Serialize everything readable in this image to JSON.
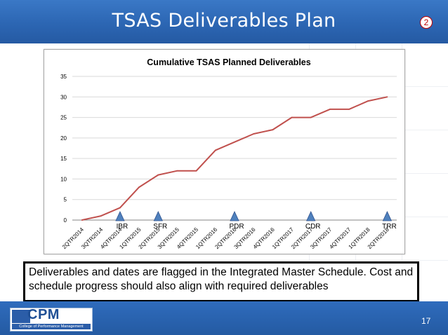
{
  "slide": {
    "title": "TSAS Deliverables Plan",
    "badge": "2",
    "page_number": "17",
    "callout": "Deliverables and dates are flagged in the Integrated Master Schedule.  Cost and schedule progress should also align with required deliverables"
  },
  "logo": {
    "name": "CPM",
    "subtitle": "College of Performance Management"
  },
  "colors": {
    "header_blue": "#2c66b3",
    "line": "#c0504d",
    "milestone_fill": "#4f81bd",
    "milestone_edge": "#2f528f"
  },
  "chart_data": {
    "type": "line",
    "title": "Cumulative TSAS Planned Deliverables",
    "xlabel": "",
    "ylabel": "",
    "ylim": [
      0,
      35
    ],
    "yticks": [
      0,
      5,
      10,
      15,
      20,
      25,
      30,
      35
    ],
    "grid": true,
    "legend": "none",
    "categories": [
      "2QTR2014",
      "3QTR2014",
      "4QTR2014",
      "1QTR2015",
      "2QTR2015",
      "3QTR2015",
      "4QTR2015",
      "1QTR2016",
      "2QTR2016",
      "3QTR2016",
      "4QTR2016",
      "1QTR2017",
      "2QTR2017",
      "3QTR2017",
      "4QTR2017",
      "1QTR2018",
      "2QTR2018"
    ],
    "series": [
      {
        "values": [
          0,
          1,
          3,
          8,
          11,
          12,
          12,
          17,
          19,
          21,
          22,
          25,
          25,
          27,
          27,
          29,
          30
        ]
      }
    ],
    "milestones": [
      {
        "label": "IBR",
        "category": "4QTR2014"
      },
      {
        "label": "SFR",
        "category": "2QTR2015"
      },
      {
        "label": "PDR",
        "category": "2QTR2016"
      },
      {
        "label": "CDR",
        "category": "2QTR2017"
      },
      {
        "label": "TRR",
        "category": "2QTR2018"
      }
    ]
  }
}
